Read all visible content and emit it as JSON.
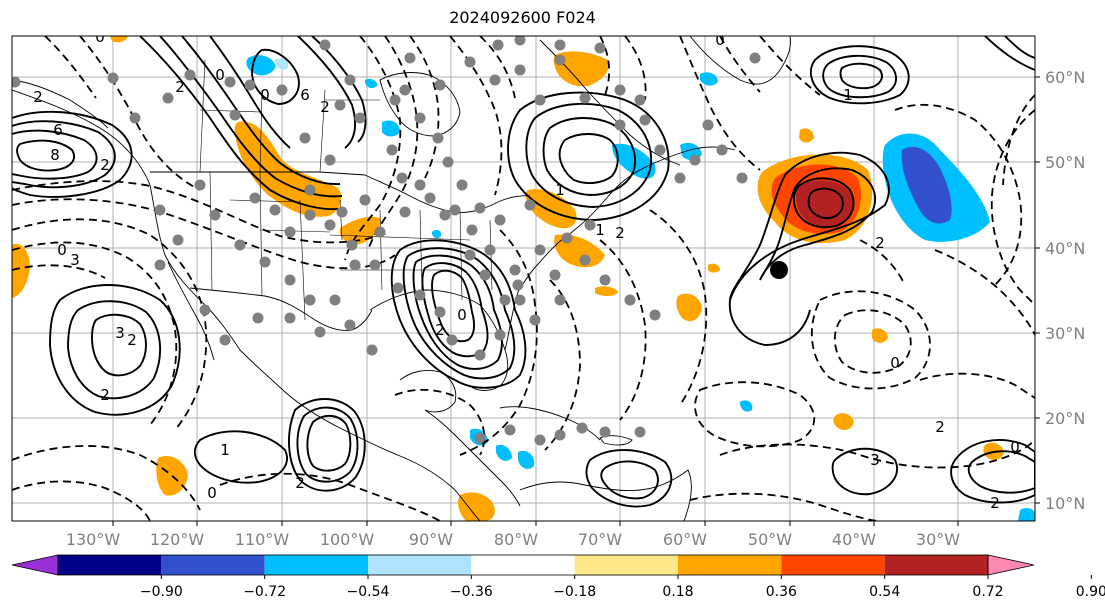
{
  "title": "2024092600 F024",
  "map": {
    "lon_labels": [
      "130°W",
      "120°W",
      "110°W",
      "100°W",
      "90°W",
      "80°W",
      "70°W",
      "60°W",
      "50°W",
      "40°W",
      "30°W"
    ],
    "lat_labels": [
      "60°N",
      "50°N",
      "40°N",
      "30°N",
      "20°N",
      "10°N"
    ],
    "contour_labels": [
      "0",
      "2",
      "6",
      "8",
      "2",
      "3",
      "0",
      "3",
      "2",
      "2",
      "1",
      "0",
      "2",
      "6",
      "0",
      "2",
      "2",
      "0",
      "2",
      "0",
      "1",
      "1",
      "2",
      "0",
      "1",
      "2",
      "3",
      "0",
      "0",
      "2",
      "2"
    ],
    "colors": {
      "tick_label": "#808080",
      "contour": "#000000",
      "coast": "#000000",
      "grid": "#b0b0b0",
      "station_marker": "#808080",
      "center_marker": "#000000"
    }
  },
  "colorbar": {
    "ticks": [
      "−0.90",
      "−0.72",
      "−0.54",
      "−0.36",
      "−0.18",
      "0.18",
      "0.36",
      "0.54",
      "0.72",
      "0.90"
    ],
    "colors": [
      "#9b30d8",
      "#000088",
      "#3050cc",
      "#00bfff",
      "#afe3ff",
      "#ffffff",
      "#ffe888",
      "#ffa500",
      "#ff4500",
      "#b22222",
      "#ff88b0"
    ]
  }
}
